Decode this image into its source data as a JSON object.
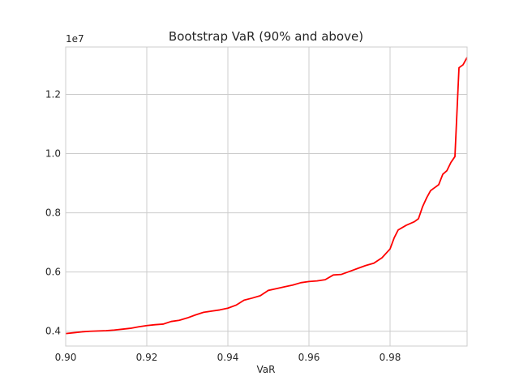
{
  "chart_data": {
    "type": "line",
    "title": "Bootstrap VaR (90% and above)",
    "xlabel": "VaR",
    "ylabel": "",
    "y_offset_label": "1e7",
    "xlim": [
      0.9,
      0.999
    ],
    "ylim": [
      3.5,
      13.6
    ],
    "xticks": [
      0.9,
      0.92,
      0.94,
      0.96,
      0.98
    ],
    "xtick_labels": [
      "0.90",
      "0.92",
      "0.94",
      "0.96",
      "0.98"
    ],
    "yticks": [
      4,
      6,
      8,
      10,
      12
    ],
    "ytick_labels": [
      "0.4",
      "0.6",
      "0.8",
      "1.0",
      "1.2"
    ],
    "grid": true,
    "series": [
      {
        "color": "#ff0000",
        "x": [
          0.9,
          0.902,
          0.904,
          0.906,
          0.908,
          0.91,
          0.912,
          0.914,
          0.916,
          0.918,
          0.92,
          0.922,
          0.924,
          0.926,
          0.928,
          0.93,
          0.932,
          0.934,
          0.936,
          0.938,
          0.94,
          0.942,
          0.944,
          0.946,
          0.948,
          0.95,
          0.952,
          0.954,
          0.956,
          0.958,
          0.96,
          0.962,
          0.964,
          0.966,
          0.968,
          0.97,
          0.972,
          0.974,
          0.976,
          0.978,
          0.98,
          0.981,
          0.982,
          0.984,
          0.986,
          0.987,
          0.988,
          0.989,
          0.99,
          0.991,
          0.992,
          0.993,
          0.994,
          0.995,
          0.996,
          0.997,
          0.998,
          0.999
        ],
        "y": [
          3.92,
          3.95,
          3.98,
          4.0,
          4.01,
          4.02,
          4.04,
          4.07,
          4.1,
          4.15,
          4.19,
          4.22,
          4.24,
          4.33,
          4.37,
          4.45,
          4.55,
          4.64,
          4.68,
          4.72,
          4.78,
          4.88,
          5.05,
          5.12,
          5.2,
          5.38,
          5.44,
          5.5,
          5.56,
          5.64,
          5.68,
          5.7,
          5.74,
          5.9,
          5.92,
          6.02,
          6.12,
          6.22,
          6.3,
          6.48,
          6.78,
          7.15,
          7.42,
          7.58,
          7.7,
          7.8,
          8.2,
          8.5,
          8.75,
          8.85,
          8.95,
          9.3,
          9.42,
          9.7,
          9.9,
          12.9,
          13.0,
          13.25
        ]
      }
    ]
  }
}
